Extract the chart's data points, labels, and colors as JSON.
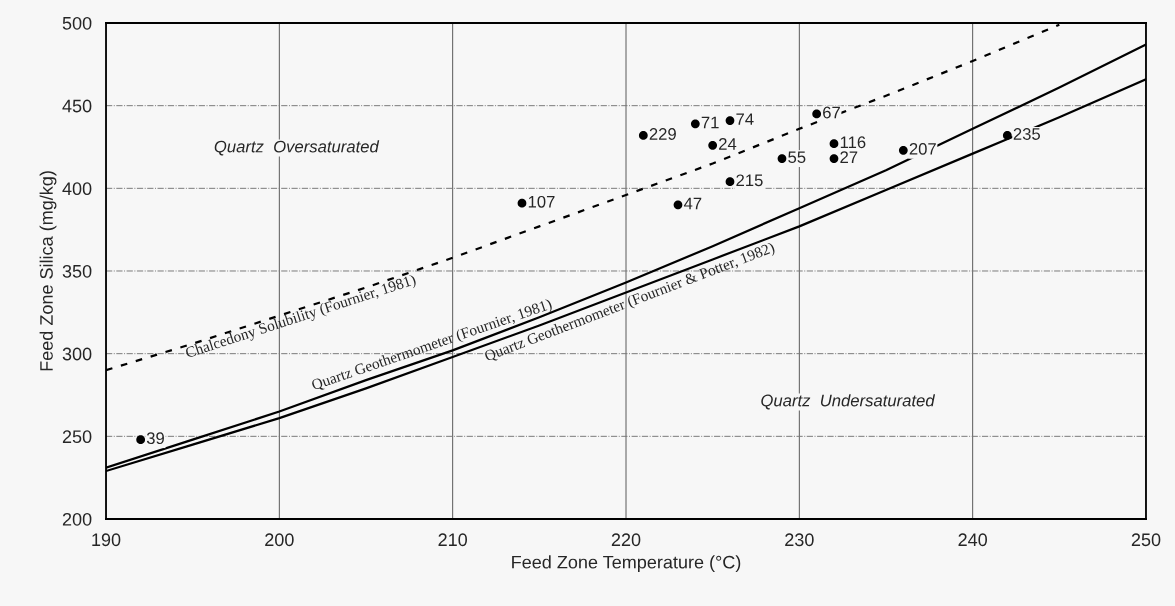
{
  "chart_data": {
    "type": "scatter",
    "xlabel": "Feed Zone Temperature (°C)",
    "ylabel": "Feed Zone Silica (mg/kg)",
    "xlim": [
      190,
      250
    ],
    "ylim": [
      200,
      500
    ],
    "xticks": [
      190,
      200,
      210,
      220,
      230,
      240,
      250
    ],
    "yticks": [
      200,
      250,
      300,
      350,
      400,
      450,
      500
    ],
    "grid": true,
    "series": [
      {
        "color": "#000000",
        "marker": "circle",
        "x": [
          192,
          214,
          221,
          224,
          226,
          225,
          231,
          229,
          232,
          232,
          226,
          223,
          236,
          242
        ],
        "values": [
          248,
          391,
          432,
          439,
          441,
          426,
          445,
          418,
          427,
          418,
          404,
          390,
          423,
          432
        ]
      },
      {
        "type": "line",
        "name": "Chalcedony Solubility (Fournier, 1981)",
        "color": "#000000",
        "line_style": "dashed",
        "x": [
          190,
          195,
          200,
          205,
          210,
          215,
          220,
          225,
          230,
          235,
          240,
          245
        ],
        "values": [
          290,
          306,
          323,
          340,
          358,
          377,
          396,
          415,
          436,
          456,
          477,
          499
        ]
      },
      {
        "type": "line",
        "name": "Quartz Geothermometer (Fournier, 1981)",
        "color": "#000000",
        "line_style": "solid",
        "x": [
          190,
          195,
          200,
          205,
          210,
          215,
          220,
          225,
          230,
          235,
          240,
          245,
          250
        ],
        "values": [
          231,
          248,
          265,
          284,
          302,
          322,
          343,
          365,
          388,
          411,
          436,
          461,
          487
        ]
      },
      {
        "type": "line",
        "name": "Quartz Geothermometer (Fournier & Potter, 1982)",
        "color": "#000000",
        "line_style": "solid",
        "x": [
          190,
          195,
          200,
          205,
          210,
          215,
          220,
          225,
          230,
          235,
          240,
          245,
          250
        ],
        "values": [
          229,
          245,
          261,
          279,
          298,
          317,
          337,
          357,
          377,
          399,
          421,
          443,
          466
        ]
      }
    ],
    "annotations": [
      {
        "text": "39",
        "x": 192,
        "y": 248
      },
      {
        "text": "107",
        "x": 214,
        "y": 391
      },
      {
        "text": "229",
        "x": 221,
        "y": 432
      },
      {
        "text": "71",
        "x": 224,
        "y": 439
      },
      {
        "text": "74",
        "x": 226,
        "y": 441
      },
      {
        "text": "24",
        "x": 225,
        "y": 426
      },
      {
        "text": "67",
        "x": 231,
        "y": 445
      },
      {
        "text": "55",
        "x": 229,
        "y": 418
      },
      {
        "text": "116",
        "x": 232,
        "y": 427
      },
      {
        "text": "27",
        "x": 232,
        "y": 418
      },
      {
        "text": "215",
        "x": 226,
        "y": 404
      },
      {
        "text": "47",
        "x": 223,
        "y": 390
      },
      {
        "text": "207",
        "x": 236,
        "y": 423
      },
      {
        "text": "235",
        "x": 242,
        "y": 432
      },
      "Quartz  Oversaturated",
      "Quartz  Undersaturated"
    ]
  }
}
